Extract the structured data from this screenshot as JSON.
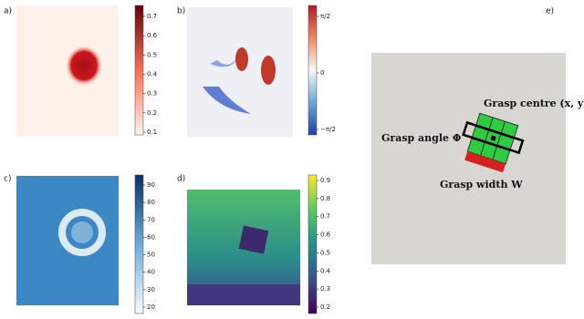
{
  "panels": [
    {
      "label": "a)",
      "ticks": [
        "0.7",
        "0.6",
        "0.5",
        "0.4",
        "0.3",
        "0.2",
        "0.1"
      ]
    },
    {
      "label": "b)",
      "ticks": [
        "π/2",
        "0",
        "−π/2"
      ]
    },
    {
      "label": "c)",
      "ticks": [
        "90",
        "80",
        "70",
        "60",
        "50",
        "40",
        "30",
        "20"
      ]
    },
    {
      "label": "d)",
      "ticks": [
        "0.9",
        "0.8",
        "0.7",
        "0.6",
        "0.5",
        "0.4",
        "0.3",
        "0.2"
      ]
    },
    {
      "label": "e)",
      "annotations": [
        "Grasp centre (x, y)",
        "Grasp angle Φ",
        "Grasp width W"
      ]
    }
  ]
}
